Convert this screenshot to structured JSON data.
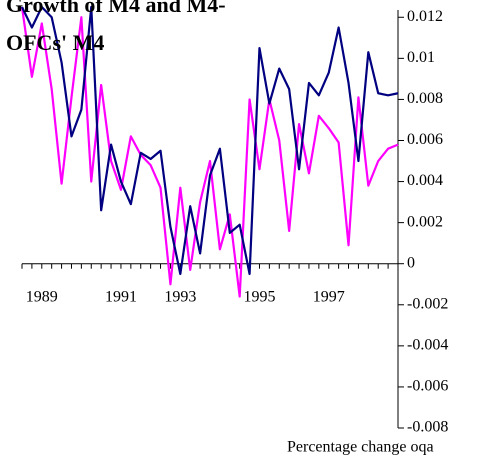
{
  "chart_data": {
    "type": "line",
    "title": "Growth of M4 and M4-OFCs' M4",
    "footnote": "Percentage change oqa",
    "categories": [
      null,
      null,
      "1989",
      null,
      null,
      null,
      null,
      null,
      null,
      null,
      "1991",
      null,
      null,
      null,
      null,
      null,
      "1993",
      null,
      null,
      null,
      null,
      null,
      null,
      null,
      "1995",
      null,
      null,
      null,
      null,
      null,
      null,
      "1997",
      null,
      null,
      null,
      null,
      null,
      null,
      null
    ],
    "series": [
      {
        "color": "#000080",
        "values": [
          0.0125,
          0.0115,
          0.0125,
          0.012,
          0.0098,
          0.0062,
          0.0075,
          0.0125,
          0.0026,
          0.0058,
          0.004,
          0.0029,
          0.0054,
          0.0051,
          0.0055,
          0.0018,
          -0.0005,
          0.0028,
          0.0005,
          0.0043,
          0.0056,
          0.0015,
          0.0019,
          -0.0005,
          0.0105,
          0.0078,
          0.0095,
          0.0085,
          0.0046,
          0.0088,
          0.0082,
          0.0093,
          0.0115,
          0.0088,
          0.005,
          0.0103,
          0.0083,
          0.0082,
          0.0083
        ]
      },
      {
        "color": "#ff00ff",
        "values": [
          0.0125,
          0.0091,
          0.0117,
          0.0085,
          0.0039,
          0.0081,
          0.012,
          0.004,
          0.0087,
          0.005,
          0.0036,
          0.0062,
          0.0053,
          0.0048,
          0.0037,
          -0.001,
          0.0037,
          -0.0003,
          0.003,
          0.005,
          0.0007,
          0.0024,
          -0.0016,
          0.008,
          0.0046,
          0.008,
          0.006,
          0.0016,
          0.0068,
          0.0044,
          0.0072,
          0.0066,
          0.0059,
          0.0009,
          0.0081,
          0.0038,
          0.005,
          0.0056,
          0.0058
        ]
      }
    ],
    "ylim": [
      -0.008,
      0.0125
    ],
    "yticks": [
      0.012,
      0.01,
      0.008,
      0.006,
      0.004,
      0.002,
      0,
      -0.002,
      -0.004,
      -0.006,
      -0.008
    ]
  }
}
